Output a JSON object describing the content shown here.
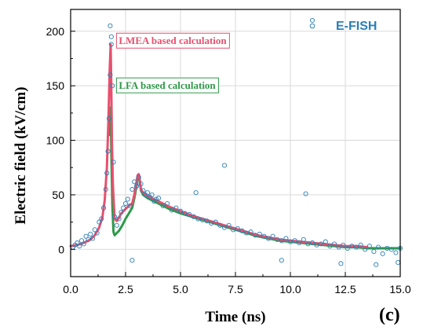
{
  "chart_data": {
    "type": "scatter",
    "xlabel": "Time (ns)",
    "ylabel": "Electric field (kV/cm)",
    "xlim": [
      0,
      15
    ],
    "ylim": [
      -25,
      220
    ],
    "xticks": [
      "0.0",
      "2.5",
      "5.0",
      "7.5",
      "10.0",
      "12.5",
      "15.0"
    ],
    "yticks": [
      "0",
      "50",
      "100",
      "150",
      "200"
    ],
    "xtick_values": [
      0,
      2.5,
      5,
      7.5,
      10,
      12.5,
      15
    ],
    "ytick_values": [
      0,
      50,
      100,
      150,
      200
    ],
    "grid": true,
    "panel_label": "(c)",
    "legend": {
      "label": "E-FISH",
      "placement": "top-right",
      "color": "#2a7fb8"
    },
    "annotations": [
      {
        "text": "LMEA based calculation",
        "color": "#e8506e",
        "x": 2.05,
        "y": 191
      },
      {
        "text": "LFA based calculation",
        "color": "#2e9a48",
        "x": 2.05,
        "y": 150
      }
    ],
    "series": [
      {
        "name": "LMEA based calculation",
        "kind": "line",
        "color": "#e8506e",
        "x": [
          0,
          0.3,
          0.6,
          0.9,
          1.1,
          1.3,
          1.45,
          1.55,
          1.65,
          1.72,
          1.78,
          1.82,
          1.85,
          1.88,
          1.92,
          2.0,
          2.1,
          2.2,
          2.3,
          2.45,
          2.6,
          2.8,
          2.9,
          3.0,
          3.05,
          3.1,
          3.15,
          3.2,
          3.3,
          3.5,
          3.8,
          4.1,
          4.5,
          5.0,
          5.5,
          6.0,
          6.5,
          7.0,
          7.5,
          8.0,
          8.5,
          9.0,
          9.5,
          10.0,
          10.5,
          11.0,
          11.5,
          12.0,
          12.5,
          13.0,
          13.5
        ],
        "y": [
          3,
          4,
          6,
          9,
          13,
          20,
          30,
          45,
          75,
          120,
          165,
          188,
          150,
          100,
          60,
          28,
          26,
          29,
          33,
          36,
          39,
          42,
          50,
          62,
          68,
          69,
          63,
          55,
          52,
          49,
          46,
          43,
          39,
          35,
          31,
          28,
          25,
          22,
          19,
          16,
          13,
          11,
          9,
          8,
          7,
          6,
          5,
          4,
          3,
          3,
          2
        ]
      },
      {
        "name": "LFA based calculation",
        "kind": "line",
        "color": "#2e9a48",
        "x": [
          1.75,
          1.8,
          1.83,
          1.86,
          1.9,
          1.95,
          2.0,
          2.1,
          2.2,
          2.35,
          2.5,
          2.65,
          2.8,
          2.9,
          3.0,
          3.05,
          3.1,
          3.15,
          3.2,
          3.3,
          3.5,
          3.8,
          4.1,
          4.5,
          5.0,
          5.5,
          6.0,
          6.5,
          7.0,
          7.5,
          8.0,
          8.5,
          9.0,
          9.5,
          10.0,
          10.5,
          11.0,
          11.5,
          12.0,
          12.5,
          13.0,
          13.5,
          14.0,
          14.5,
          15.0
        ],
        "y": [
          105,
          130,
          120,
          80,
          40,
          16,
          13,
          15,
          17,
          22,
          28,
          33,
          38,
          47,
          58,
          66,
          68,
          62,
          54,
          50,
          47,
          44,
          41,
          37,
          33,
          30,
          27,
          24,
          21,
          18,
          15,
          12,
          10,
          8,
          7,
          6,
          5,
          4,
          3,
          2,
          2,
          1,
          1,
          1,
          1
        ]
      },
      {
        "name": "E-FISH",
        "kind": "scatter",
        "color": "#2a7fb8",
        "x": [
          0.1,
          0.2,
          0.3,
          0.4,
          0.5,
          0.6,
          0.7,
          0.8,
          0.9,
          1.0,
          1.1,
          1.2,
          1.3,
          1.4,
          1.5,
          1.6,
          1.65,
          1.7,
          1.75,
          1.8,
          1.85,
          1.9,
          1.95,
          2.0,
          2.1,
          2.2,
          2.3,
          2.4,
          2.5,
          2.6,
          2.7,
          2.8,
          2.9,
          3.0,
          3.1,
          3.2,
          3.3,
          3.4,
          3.5,
          3.6,
          3.7,
          3.8,
          3.9,
          4.0,
          4.2,
          4.4,
          4.6,
          4.8,
          5.0,
          5.2,
          5.4,
          5.6,
          5.8,
          6.0,
          6.2,
          6.4,
          6.6,
          6.8,
          7.0,
          7.2,
          7.4,
          7.6,
          7.8,
          8.0,
          8.2,
          8.4,
          8.6,
          8.8,
          9.0,
          9.2,
          9.4,
          9.6,
          9.8,
          10.0,
          10.2,
          10.4,
          10.6,
          10.8,
          11.0,
          11.2,
          11.4,
          11.6,
          11.8,
          12.0,
          12.2,
          12.4,
          12.6,
          12.8,
          13.0,
          13.2,
          13.4,
          13.6,
          13.8,
          14.0,
          14.2,
          14.4,
          14.6,
          14.8,
          15.0,
          1.8,
          1.85,
          11.0,
          7.0,
          10.7,
          2.8,
          13.9,
          12.3,
          14.9,
          9.6,
          5.7
        ],
        "y": [
          2,
          4,
          6,
          3,
          8,
          5,
          12,
          9,
          14,
          10,
          18,
          15,
          25,
          28,
          38,
          55,
          70,
          90,
          120,
          160,
          195,
          150,
          80,
          30,
          22,
          28,
          34,
          38,
          42,
          46,
          40,
          55,
          62,
          58,
          66,
          60,
          54,
          50,
          52,
          48,
          50,
          44,
          46,
          47,
          40,
          42,
          36,
          38,
          35,
          33,
          32,
          30,
          28,
          27,
          26,
          24,
          25,
          22,
          20,
          22,
          18,
          19,
          17,
          15,
          16,
          13,
          14,
          12,
          10,
          12,
          9,
          8,
          10,
          7,
          8,
          6,
          9,
          5,
          6,
          4,
          5,
          7,
          3,
          5,
          2,
          4,
          1,
          3,
          2,
          4,
          0,
          3,
          -2,
          2,
          -4,
          1,
          0,
          -3,
          1,
          205,
          188,
          210,
          77,
          51,
          -10,
          -14,
          -13,
          -12,
          -10,
          52
        ]
      }
    ]
  }
}
